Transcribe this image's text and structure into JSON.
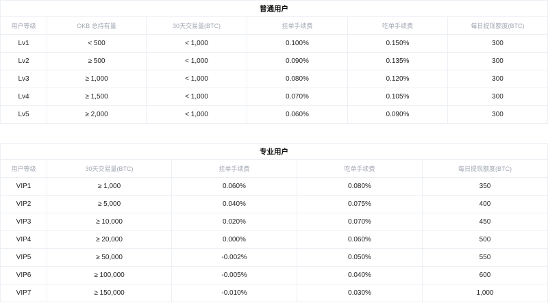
{
  "regular": {
    "title": "普通用户",
    "headers": [
      "用户等级",
      "OKB 总持有量",
      "30天交易量(BTC)",
      "挂单手续费",
      "吃单手续费",
      "每日提现额度(BTC)"
    ],
    "rows": [
      [
        "Lv1",
        "< 500",
        "< 1,000",
        "0.100%",
        "0.150%",
        "300"
      ],
      [
        "Lv2",
        "≥ 500",
        "< 1,000",
        "0.090%",
        "0.135%",
        "300"
      ],
      [
        "Lv3",
        "≥ 1,000",
        "< 1,000",
        "0.080%",
        "0.120%",
        "300"
      ],
      [
        "Lv4",
        "≥ 1,500",
        "< 1,000",
        "0.070%",
        "0.105%",
        "300"
      ],
      [
        "Lv5",
        "≥ 2,000",
        "< 1,000",
        "0.060%",
        "0.090%",
        "300"
      ]
    ]
  },
  "pro": {
    "title": "专业用户",
    "headers": [
      "用户等级",
      "30天交易量(BTC)",
      "挂单手续费",
      "吃单手续费",
      "每日提现额度(BTC)"
    ],
    "rows": [
      [
        "VIP1",
        "≥ 1,000",
        "0.060%",
        "0.080%",
        "350"
      ],
      [
        "VIP2",
        "≥ 5,000",
        "0.040%",
        "0.075%",
        "400"
      ],
      [
        "VIP3",
        "≥ 10,000",
        "0.020%",
        "0.070%",
        "450"
      ],
      [
        "VIP4",
        "≥ 20,000",
        "0.000%",
        "0.060%",
        "500"
      ],
      [
        "VIP5",
        "≥ 50,000",
        "-0.002%",
        "0.050%",
        "550"
      ],
      [
        "VIP6",
        "≥ 100,000",
        "-0.005%",
        "0.040%",
        "600"
      ],
      [
        "VIP7",
        "≥ 150,000",
        "-0.010%",
        "0.030%",
        "1,000"
      ]
    ]
  }
}
